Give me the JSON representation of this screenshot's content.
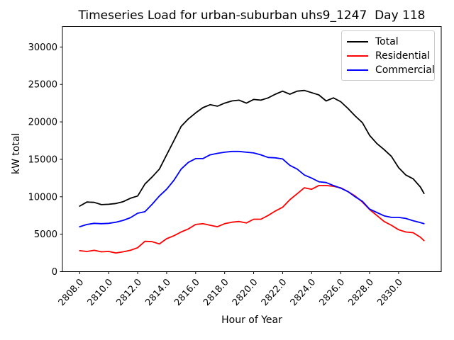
{
  "chart_data": {
    "type": "line",
    "title": "Timeseries Load for urban-suburban uhs9_1247  Day 118",
    "xlabel": "Hour of Year",
    "ylabel": "kW total",
    "grid": false,
    "legend_position": "upper right",
    "xlim": [
      2806.81,
      2832.94
    ],
    "ylim": [
      0,
      32730
    ],
    "x_tick_values": [
      2808,
      2810,
      2812,
      2814,
      2816,
      2818,
      2820,
      2822,
      2824,
      2826,
      2828,
      2830
    ],
    "x_tick_labels": [
      "2808.0",
      "2810.0",
      "2812.0",
      "2814.0",
      "2816.0",
      "2818.0",
      "2820.0",
      "2822.0",
      "2824.0",
      "2826.0",
      "2828.0",
      "2830.0"
    ],
    "y_tick_values": [
      0,
      5000,
      10000,
      15000,
      20000,
      25000,
      30000
    ],
    "y_tick_labels": [
      "0",
      "5000",
      "10000",
      "15000",
      "20000",
      "25000",
      "30000"
    ],
    "x": [
      2808,
      2808.5,
      2809,
      2809.5,
      2810,
      2810.5,
      2811,
      2811.5,
      2812,
      2812.5,
      2813,
      2813.5,
      2814,
      2814.5,
      2815,
      2815.5,
      2816,
      2816.5,
      2817,
      2817.5,
      2818,
      2818.5,
      2819,
      2819.5,
      2820,
      2820.5,
      2821,
      2821.5,
      2822,
      2822.5,
      2823,
      2823.5,
      2824,
      2824.5,
      2825,
      2825.5,
      2826,
      2826.5,
      2827,
      2827.5,
      2828,
      2828.5,
      2829,
      2829.5,
      2830,
      2830.5,
      2831,
      2831.5,
      2831.75
    ],
    "series": [
      {
        "name": "Total",
        "color": "#000000",
        "values": [
          8750,
          9300,
          9250,
          8950,
          9000,
          9100,
          9350,
          9800,
          10100,
          11700,
          12650,
          13700,
          15600,
          17500,
          19400,
          20400,
          21200,
          21900,
          22300,
          22100,
          22500,
          22800,
          22900,
          22500,
          23000,
          22900,
          23200,
          23700,
          24100,
          23700,
          24100,
          24200,
          23900,
          23600,
          22800,
          23200,
          22700,
          21800,
          20800,
          19900,
          18200,
          17100,
          16300,
          15400,
          13900,
          12900,
          12400,
          11300,
          10450
        ]
      },
      {
        "name": "Residential",
        "color": "#ff0000",
        "values": [
          2800,
          2700,
          2850,
          2650,
          2700,
          2500,
          2650,
          2850,
          3200,
          4050,
          4000,
          3700,
          4400,
          4800,
          5300,
          5700,
          6300,
          6400,
          6200,
          6000,
          6400,
          6600,
          6700,
          6500,
          7000,
          7000,
          7500,
          8100,
          8600,
          9600,
          10400,
          11200,
          11000,
          11500,
          11500,
          11400,
          11200,
          10700,
          10100,
          9300,
          8300,
          7500,
          6700,
          6200,
          5600,
          5300,
          5200,
          4600,
          4150
        ]
      },
      {
        "name": "Commercial",
        "color": "#0000ff",
        "values": [
          6000,
          6300,
          6450,
          6400,
          6450,
          6600,
          6850,
          7200,
          7800,
          8000,
          9000,
          10100,
          11000,
          12200,
          13700,
          14600,
          15100,
          15100,
          15600,
          15800,
          15950,
          16050,
          16050,
          15950,
          15850,
          15600,
          15250,
          15200,
          15050,
          14200,
          13700,
          12900,
          12500,
          12000,
          11900,
          11500,
          11150,
          10700,
          10000,
          9400,
          8350,
          7900,
          7450,
          7250,
          7250,
          7100,
          6800,
          6550,
          6400
        ]
      }
    ]
  }
}
